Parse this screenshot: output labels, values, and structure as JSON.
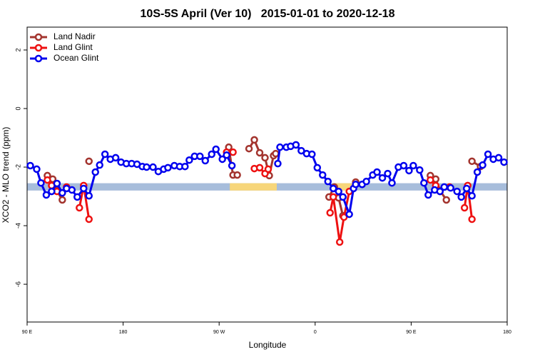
{
  "chart_data": {
    "type": "line",
    "title": "10S-5S April (Ver 10)   2015-01-01 to 2020-12-18",
    "x_label": "Longitude",
    "y_label": "XCO2 - MLO trend (ppm)",
    "xlim": [
      90,
      540
    ],
    "ylim": [
      -7.29,
      2.78
    ],
    "xticks": [
      {
        "value": 90,
        "label": "90 E"
      },
      {
        "value": 180,
        "label": "180"
      },
      {
        "value": 270,
        "label": "90 W"
      },
      {
        "value": 360,
        "label": "0"
      },
      {
        "value": 450,
        "label": "90 E"
      },
      {
        "value": 540,
        "label": "180"
      }
    ],
    "yticks": [
      -6,
      -4,
      -2,
      0,
      2
    ],
    "legend_position": "upper-left",
    "band": {
      "range": [
        -2.55,
        -2.8
      ],
      "color": "#a7bddb",
      "highlights": [
        {
          "xlim": [
            280,
            324
          ],
          "color": "#f7d67a"
        },
        {
          "xlim": [
            379,
            399
          ],
          "color": "#f7d67a"
        }
      ]
    },
    "series": [
      {
        "name": "Land Nadir",
        "color": "#a3342e",
        "x": [
          109,
          114,
          118,
          123,
          null,
          148,
          null,
          279,
          283,
          287,
          null,
          298,
          303,
          308,
          313,
          317,
          321,
          323,
          null,
          373,
          378,
          382,
          386,
          null,
          398,
          null,
          468,
          473,
          477,
          483,
          null,
          507,
          515
        ],
        "values": [
          -2.29,
          -2.41,
          -2.8,
          -3.12,
          null,
          -1.8,
          null,
          -1.32,
          -2.27,
          -2.27,
          null,
          -1.37,
          -1.07,
          -1.51,
          -1.68,
          -2.29,
          -1.61,
          -1.54,
          null,
          -3.02,
          -2.68,
          -3.05,
          -3.66,
          null,
          -2.51,
          null,
          -2.29,
          -2.41,
          -2.8,
          -3.12,
          null,
          -1.8,
          -1.98
        ]
      },
      {
        "name": "Land Glint",
        "color": "#ee1111",
        "x": [
          109,
          113,
          118,
          null,
          127,
          null,
          139,
          143,
          148,
          null,
          277,
          283,
          null,
          303,
          308,
          313,
          316,
          null,
          374,
          377,
          383,
          387,
          392,
          null,
          468,
          473,
          477,
          null,
          486,
          null,
          500,
          503,
          507
        ],
        "values": [
          -2.44,
          -2.63,
          -2.83,
          null,
          -2.68,
          null,
          -3.39,
          -2.63,
          -3.78,
          null,
          -1.49,
          -1.49,
          null,
          -2.05,
          -2.02,
          -2.22,
          -2.07,
          null,
          -3.56,
          -3.02,
          -4.56,
          -3.71,
          -2.83,
          null,
          -2.44,
          -2.63,
          -2.83,
          null,
          -2.68,
          null,
          -3.39,
          -2.63,
          -3.78
        ]
      },
      {
        "name": "Ocean Glint",
        "color": "#0000ee",
        "x": [
          93,
          99,
          103,
          108,
          113,
          118,
          123,
          127,
          132,
          137,
          143,
          148,
          154,
          158,
          163,
          168,
          173,
          178,
          183,
          188,
          193,
          198,
          202,
          208,
          213,
          218,
          222,
          228,
          233,
          238,
          242,
          247,
          252,
          257,
          263,
          267,
          273,
          277,
          282,
          null,
          325,
          327,
          333,
          337,
          342,
          347,
          352,
          357,
          362,
          367,
          372,
          377,
          382,
          386,
          392,
          396,
          398,
          404,
          408,
          414,
          418,
          423,
          428,
          432,
          438,
          443,
          448,
          452,
          458,
          462,
          466,
          472,
          477,
          481,
          487,
          493,
          497,
          502,
          507,
          512,
          517,
          522,
          527,
          532,
          537
        ],
        "values": [
          -1.95,
          -2.07,
          -2.54,
          -2.95,
          -2.83,
          -2.56,
          -2.88,
          -2.73,
          -2.78,
          -3.02,
          -2.73,
          -2.98,
          -2.17,
          -1.93,
          -1.56,
          -1.73,
          -1.68,
          -1.83,
          -1.88,
          -1.88,
          -1.9,
          -1.98,
          -2.0,
          -2.0,
          -2.15,
          -2.07,
          -2.02,
          -1.95,
          -1.98,
          -1.98,
          -1.76,
          -1.63,
          -1.63,
          -1.78,
          -1.56,
          -1.39,
          -1.73,
          -1.59,
          -1.95,
          null,
          -1.88,
          -1.32,
          -1.32,
          -1.29,
          -1.24,
          -1.44,
          -1.54,
          -1.56,
          -2.02,
          -2.27,
          -2.49,
          -2.73,
          -2.83,
          -3.02,
          -3.61,
          -2.73,
          -2.59,
          -2.59,
          -2.49,
          -2.27,
          -2.17,
          -2.37,
          -2.22,
          -2.54,
          -2.0,
          -1.95,
          -2.12,
          -1.95,
          -2.1,
          -2.54,
          -2.95,
          -2.78,
          -2.83,
          -2.68,
          -2.71,
          -2.83,
          -3.02,
          -2.73,
          -2.98,
          -2.17,
          -1.93,
          -1.56,
          -1.73,
          -1.68,
          -1.83
        ]
      }
    ]
  }
}
